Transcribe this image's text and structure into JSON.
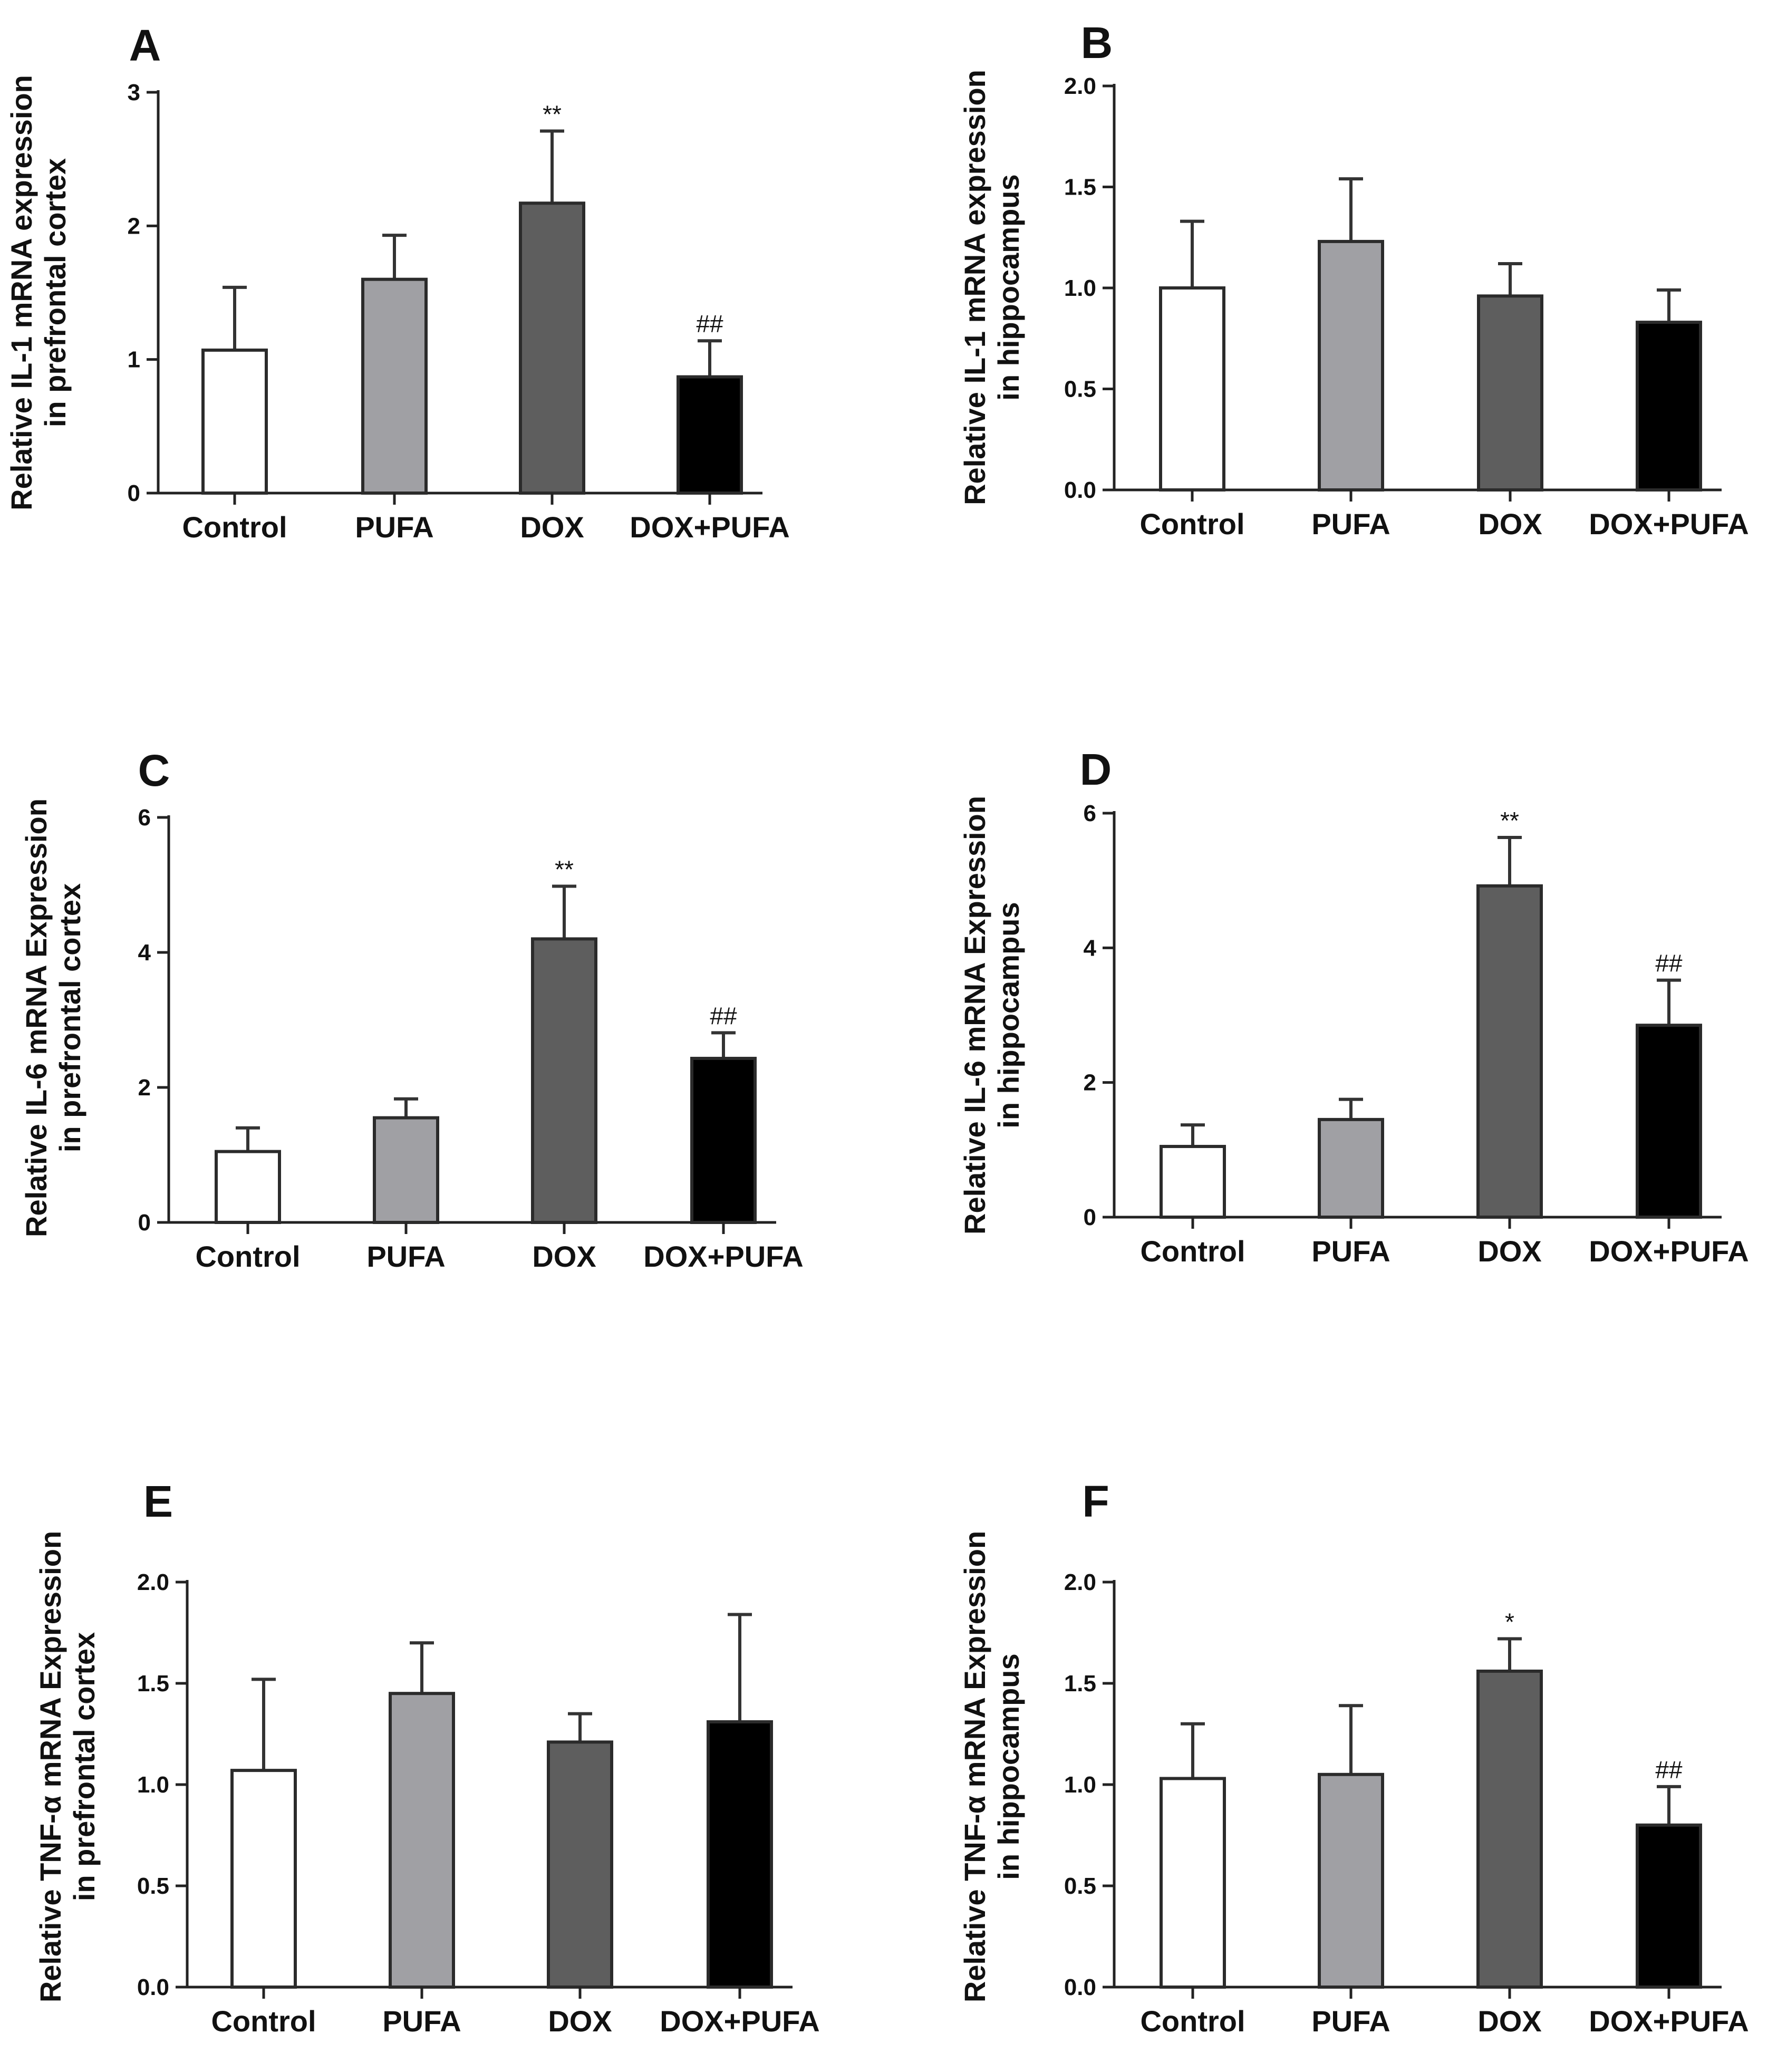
{
  "figure": {
    "panel_count": 6
  },
  "colors": {
    "Control": "#ffffff",
    "PUFA": "#a0a0a4",
    "DOX": "#5e5e5e",
    "DOX+PUFA": "#000000",
    "stroke": "#2b2b2b"
  },
  "chart_data": [
    {
      "panel": "A",
      "type": "bar",
      "categories": [
        "Control",
        "PUFA",
        "DOX",
        "DOX+PUFA"
      ],
      "values": [
        1.07,
        1.6,
        2.17,
        0.87
      ],
      "errors": [
        0.47,
        0.33,
        0.54,
        0.27
      ],
      "annotations": [
        "",
        "",
        "**",
        "##"
      ],
      "ylabel_lines": [
        "Relative IL-1 mRNA expression",
        "in prefrontal cortex"
      ],
      "ylim": [
        0,
        3
      ],
      "yticks": [
        0,
        1,
        2,
        3
      ],
      "ytick_labels": [
        "0",
        "1",
        "2",
        "3"
      ]
    },
    {
      "panel": "B",
      "type": "bar",
      "categories": [
        "Control",
        "PUFA",
        "DOX",
        "DOX+PUFA"
      ],
      "values": [
        1.0,
        1.23,
        0.96,
        0.83
      ],
      "errors": [
        0.33,
        0.31,
        0.16,
        0.16
      ],
      "annotations": [
        "",
        "",
        "",
        ""
      ],
      "ylabel_lines": [
        "Relative IL-1 mRNA expression",
        "in hippocampus"
      ],
      "ylim": [
        0,
        2
      ],
      "yticks": [
        0,
        0.5,
        1,
        1.5,
        2
      ],
      "ytick_labels": [
        "0.0",
        "0.5",
        "1.0",
        "1.5",
        "2.0"
      ]
    },
    {
      "panel": "C",
      "type": "bar",
      "categories": [
        "Control",
        "PUFA",
        "DOX",
        "DOX+PUFA"
      ],
      "values": [
        1.05,
        1.55,
        4.2,
        2.43
      ],
      "errors": [
        0.35,
        0.28,
        0.78,
        0.38
      ],
      "annotations": [
        "",
        "",
        "**",
        "##"
      ],
      "ylabel_lines": [
        "Relative IL-6 mRNA Expression",
        "in prefrontal cortex"
      ],
      "ylim": [
        0,
        6
      ],
      "yticks": [
        0,
        2,
        4,
        6
      ],
      "ytick_labels": [
        "0",
        "2",
        "4",
        "6"
      ]
    },
    {
      "panel": "D",
      "type": "bar",
      "categories": [
        "Control",
        "PUFA",
        "DOX",
        "DOX+PUFA"
      ],
      "values": [
        1.05,
        1.45,
        4.92,
        2.85
      ],
      "errors": [
        0.32,
        0.3,
        0.72,
        0.67
      ],
      "annotations": [
        "",
        "",
        "**",
        "##"
      ],
      "ylabel_lines": [
        "Relative IL-6 mRNA Expression",
        "in hippocampus"
      ],
      "ylim": [
        0,
        6
      ],
      "yticks": [
        0,
        2,
        4,
        6
      ],
      "ytick_labels": [
        "0",
        "2",
        "4",
        "6"
      ]
    },
    {
      "panel": "E",
      "type": "bar",
      "categories": [
        "Control",
        "PUFA",
        "DOX",
        "DOX+PUFA"
      ],
      "values": [
        1.07,
        1.45,
        1.21,
        1.31
      ],
      "errors": [
        0.45,
        0.25,
        0.14,
        0.53
      ],
      "annotations": [
        "",
        "",
        "",
        ""
      ],
      "ylabel_lines": [
        "Relative TNF-α mRNA Expression",
        "in prefrontal cortex"
      ],
      "ylim": [
        0,
        2
      ],
      "yticks": [
        0,
        0.5,
        1,
        1.5,
        2
      ],
      "ytick_labels": [
        "0.0",
        "0.5",
        "1.0",
        "1.5",
        "2.0"
      ]
    },
    {
      "panel": "F",
      "type": "bar",
      "categories": [
        "Control",
        "PUFA",
        "DOX",
        "DOX+PUFA"
      ],
      "values": [
        1.03,
        1.05,
        1.56,
        0.8
      ],
      "errors": [
        0.27,
        0.34,
        0.16,
        0.19
      ],
      "annotations": [
        "",
        "",
        "*",
        "##"
      ],
      "ylabel_lines": [
        "Relative TNF-α mRNA Expression",
        "in hippocampus"
      ],
      "ylim": [
        0,
        2
      ],
      "yticks": [
        0,
        0.5,
        1,
        1.5,
        2
      ],
      "ytick_labels": [
        "0.0",
        "0.5",
        "1.0",
        "1.5",
        "2.0"
      ]
    }
  ]
}
